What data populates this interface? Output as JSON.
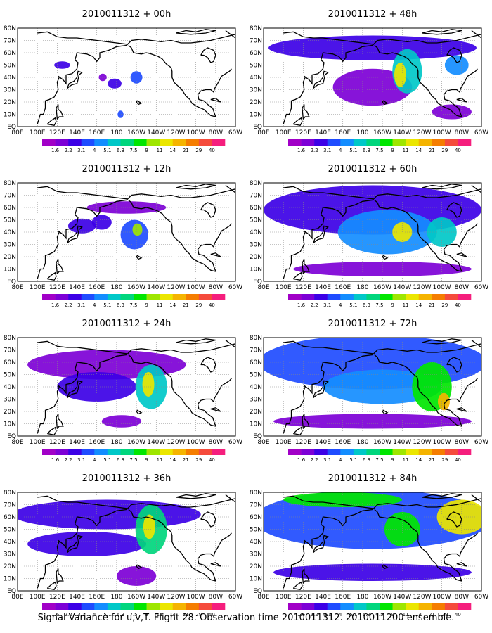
{
  "colorbar": {
    "labels": [
      "1.6",
      "2.2",
      "3.1",
      "4",
      "5.1",
      "6.3",
      "7.5",
      "9",
      "11",
      "14",
      "21",
      "29",
      "40"
    ],
    "colors": [
      "#a100c7",
      "#7d00d6",
      "#3c00e6",
      "#1f4cff",
      "#138dff",
      "#00c8c8",
      "#00d67d",
      "#00e600",
      "#9ee600",
      "#ebe600",
      "#f5b400",
      "#f57d00",
      "#f54b3c",
      "#f51e7d"
    ]
  },
  "axes": {
    "x_ticks": [
      "80E",
      "100E",
      "120E",
      "140E",
      "160E",
      "180",
      "160W",
      "140W",
      "120W",
      "100W",
      "80W",
      "60W"
    ],
    "y_ticks": [
      "EQ",
      "10N",
      "20N",
      "30N",
      "40N",
      "50N",
      "60N",
      "70N",
      "80N"
    ],
    "lon_range": [
      80,
      300
    ],
    "lat_range": [
      0,
      80
    ]
  },
  "panels": [
    {
      "title": "2010011312 + 00h"
    },
    {
      "title": "2010011312 + 48h"
    },
    {
      "title": "2010011312 + 12h"
    },
    {
      "title": "2010011312 + 60h"
    },
    {
      "title": "2010011312 + 24h"
    },
    {
      "title": "2010011312 + 72h"
    },
    {
      "title": "2010011312 + 36h"
    },
    {
      "title": "2010011312 + 84h"
    }
  ],
  "caption": "Signal Variance for u,v,T. Flight 28. Observation time 2010011312. 2010011200 ensemble.",
  "chart_data": [
    {
      "type": "heatmap",
      "title": "2010011312 + 00h",
      "x_range": [
        80,
        300
      ],
      "y_range": [
        0,
        80
      ],
      "features": [
        {
          "kind": "blob",
          "lon": 125,
          "lat": 50,
          "rx": 8,
          "ry": 3,
          "level": 2
        },
        {
          "kind": "blob",
          "lon": 178,
          "lat": 35,
          "rx": 7,
          "ry": 4,
          "level": 2
        },
        {
          "kind": "blob",
          "lon": 200,
          "lat": 40,
          "rx": 6,
          "ry": 5,
          "level": 3
        },
        {
          "kind": "blob",
          "lon": 184,
          "lat": 10,
          "rx": 3,
          "ry": 3,
          "level": 3
        },
        {
          "kind": "blob",
          "lon": 166,
          "lat": 40,
          "rx": 4,
          "ry": 3,
          "level": 1
        }
      ]
    },
    {
      "type": "heatmap",
      "title": "2010011312 + 48h",
      "x_range": [
        80,
        300
      ],
      "y_range": [
        0,
        80
      ],
      "features": [
        {
          "kind": "blob",
          "lon": 190,
          "lat": 64,
          "rx": 105,
          "ry": 10,
          "level": 2
        },
        {
          "kind": "blob",
          "lon": 190,
          "lat": 32,
          "rx": 40,
          "ry": 15,
          "level": 1
        },
        {
          "kind": "blob",
          "lon": 225,
          "lat": 45,
          "rx": 15,
          "ry": 18,
          "level": 5
        },
        {
          "kind": "blob",
          "lon": 218,
          "lat": 42,
          "rx": 6,
          "ry": 10,
          "level": 9
        },
        {
          "kind": "blob",
          "lon": 275,
          "lat": 50,
          "rx": 12,
          "ry": 8,
          "level": 4
        },
        {
          "kind": "blob",
          "lon": 270,
          "lat": 12,
          "rx": 20,
          "ry": 6,
          "level": 1
        }
      ]
    },
    {
      "type": "heatmap",
      "title": "2010011312 + 12h",
      "x_range": [
        80,
        300
      ],
      "y_range": [
        0,
        80
      ],
      "features": [
        {
          "kind": "blob",
          "lon": 190,
          "lat": 60,
          "rx": 40,
          "ry": 5,
          "level": 1
        },
        {
          "kind": "blob",
          "lon": 145,
          "lat": 45,
          "rx": 14,
          "ry": 6,
          "level": 2
        },
        {
          "kind": "blob",
          "lon": 165,
          "lat": 48,
          "rx": 10,
          "ry": 6,
          "level": 2
        },
        {
          "kind": "blob",
          "lon": 198,
          "lat": 38,
          "rx": 14,
          "ry": 12,
          "level": 3
        },
        {
          "kind": "blob",
          "lon": 201,
          "lat": 42,
          "rx": 5,
          "ry": 5,
          "level": 8
        }
      ]
    },
    {
      "type": "heatmap",
      "title": "2010011312 + 60h",
      "x_range": [
        80,
        300
      ],
      "y_range": [
        0,
        80
      ],
      "features": [
        {
          "kind": "blob",
          "lon": 190,
          "lat": 58,
          "rx": 110,
          "ry": 20,
          "level": 2
        },
        {
          "kind": "blob",
          "lon": 205,
          "lat": 40,
          "rx": 50,
          "ry": 18,
          "level": 4
        },
        {
          "kind": "blob",
          "lon": 220,
          "lat": 40,
          "rx": 10,
          "ry": 8,
          "level": 9
        },
        {
          "kind": "blob",
          "lon": 260,
          "lat": 40,
          "rx": 15,
          "ry": 12,
          "level": 5
        },
        {
          "kind": "blob",
          "lon": 200,
          "lat": 10,
          "rx": 90,
          "ry": 6,
          "level": 1
        }
      ]
    },
    {
      "type": "heatmap",
      "title": "2010011312 + 24h",
      "x_range": [
        80,
        300
      ],
      "y_range": [
        0,
        80
      ],
      "features": [
        {
          "kind": "blob",
          "lon": 170,
          "lat": 58,
          "rx": 80,
          "ry": 12,
          "level": 1
        },
        {
          "kind": "blob",
          "lon": 160,
          "lat": 40,
          "rx": 40,
          "ry": 12,
          "level": 2
        },
        {
          "kind": "blob",
          "lon": 215,
          "lat": 40,
          "rx": 16,
          "ry": 18,
          "level": 5
        },
        {
          "kind": "blob",
          "lon": 212,
          "lat": 42,
          "rx": 6,
          "ry": 10,
          "level": 9
        },
        {
          "kind": "blob",
          "lon": 185,
          "lat": 12,
          "rx": 20,
          "ry": 5,
          "level": 1
        }
      ]
    },
    {
      "type": "heatmap",
      "title": "2010011312 + 72h",
      "x_range": [
        80,
        300
      ],
      "y_range": [
        0,
        80
      ],
      "features": [
        {
          "kind": "blob",
          "lon": 190,
          "lat": 60,
          "rx": 115,
          "ry": 22,
          "level": 3
        },
        {
          "kind": "blob",
          "lon": 200,
          "lat": 40,
          "rx": 60,
          "ry": 14,
          "level": 4
        },
        {
          "kind": "blob",
          "lon": 250,
          "lat": 40,
          "rx": 20,
          "ry": 20,
          "level": 7
        },
        {
          "kind": "blob",
          "lon": 262,
          "lat": 28,
          "rx": 6,
          "ry": 7,
          "level": 10
        },
        {
          "kind": "blob",
          "lon": 190,
          "lat": 12,
          "rx": 100,
          "ry": 6,
          "level": 1
        }
      ]
    },
    {
      "type": "heatmap",
      "title": "2010011312 + 36h",
      "x_range": [
        80,
        300
      ],
      "y_range": [
        0,
        80
      ],
      "features": [
        {
          "kind": "blob",
          "lon": 170,
          "lat": 62,
          "rx": 95,
          "ry": 12,
          "level": 2
        },
        {
          "kind": "blob",
          "lon": 150,
          "lat": 38,
          "rx": 60,
          "ry": 10,
          "level": 2
        },
        {
          "kind": "blob",
          "lon": 215,
          "lat": 50,
          "rx": 16,
          "ry": 20,
          "level": 6
        },
        {
          "kind": "blob",
          "lon": 213,
          "lat": 52,
          "rx": 6,
          "ry": 10,
          "level": 9
        },
        {
          "kind": "blob",
          "lon": 200,
          "lat": 12,
          "rx": 20,
          "ry": 8,
          "level": 1
        }
      ]
    },
    {
      "type": "heatmap",
      "title": "2010011312 + 84h",
      "x_range": [
        80,
        300
      ],
      "y_range": [
        0,
        80
      ],
      "features": [
        {
          "kind": "blob",
          "lon": 190,
          "lat": 58,
          "rx": 120,
          "ry": 24,
          "level": 3
        },
        {
          "kind": "blob",
          "lon": 160,
          "lat": 74,
          "rx": 60,
          "ry": 6,
          "level": 7
        },
        {
          "kind": "blob",
          "lon": 220,
          "lat": 50,
          "rx": 18,
          "ry": 14,
          "level": 7
        },
        {
          "kind": "blob",
          "lon": 280,
          "lat": 60,
          "rx": 25,
          "ry": 14,
          "level": 9
        },
        {
          "kind": "blob",
          "lon": 190,
          "lat": 15,
          "rx": 100,
          "ry": 7,
          "level": 2
        }
      ]
    }
  ]
}
